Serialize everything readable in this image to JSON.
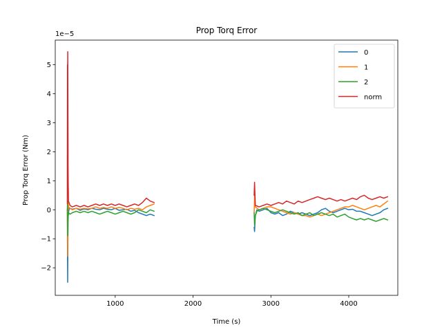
{
  "chart_data": {
    "type": "line",
    "title": "Prop Torq Error",
    "xlabel": "Time (s)",
    "ylabel": "Prop Torq Error (Nm)",
    "y_offset_label": "1e−5",
    "xlim": [
      230,
      4630
    ],
    "ylim": [
      -2.95,
      5.85
    ],
    "y_scale_note": "values are in units of 1e-5 Nm",
    "xticks": [
      1000,
      2000,
      3000,
      4000
    ],
    "xtick_labels": [
      "1000",
      "2000",
      "3000",
      "4000"
    ],
    "yticks": [
      -2,
      -1,
      0,
      1,
      2,
      3,
      4,
      5
    ],
    "ytick_labels": [
      "−2",
      "−1",
      "0",
      "1",
      "2",
      "3",
      "4",
      "5"
    ],
    "grid": false,
    "legend_position": "upper right",
    "series": [
      {
        "name": "0",
        "color": "#1f77b4",
        "segments": [
          [
            [
              385,
              0
            ],
            [
              388,
              -1.6
            ],
            [
              390,
              -2.5
            ],
            [
              392,
              -1.2
            ],
            [
              395,
              -0.3
            ],
            [
              400,
              -0.1
            ],
            [
              410,
              0.05
            ],
            [
              450,
              0.02
            ],
            [
              500,
              0.05
            ],
            [
              550,
              -0.02
            ],
            [
              600,
              0.03
            ],
            [
              650,
              0.0
            ],
            [
              700,
              0.05
            ],
            [
              750,
              0.02
            ],
            [
              800,
              0.0
            ],
            [
              850,
              0.05
            ],
            [
              900,
              0.02
            ],
            [
              950,
              0.0
            ],
            [
              1000,
              0.05
            ],
            [
              1050,
              -0.02
            ],
            [
              1100,
              0.0
            ],
            [
              1150,
              0.02
            ],
            [
              1200,
              -0.05
            ],
            [
              1250,
              -0.02
            ],
            [
              1300,
              -0.1
            ],
            [
              1350,
              -0.15
            ],
            [
              1400,
              -0.2
            ],
            [
              1450,
              -0.15
            ],
            [
              1500,
              -0.2
            ]
          ],
          [
            [
              2785,
              -0.6
            ],
            [
              2790,
              -0.75
            ],
            [
              2800,
              -0.2
            ],
            [
              2820,
              0.0
            ],
            [
              2850,
              -0.05
            ],
            [
              2900,
              0.0
            ],
            [
              2950,
              0.05
            ],
            [
              3000,
              -0.1
            ],
            [
              3050,
              -0.15
            ],
            [
              3100,
              -0.1
            ],
            [
              3150,
              -0.2
            ],
            [
              3200,
              -0.15
            ],
            [
              3250,
              -0.05
            ],
            [
              3300,
              -0.1
            ],
            [
              3350,
              -0.15
            ],
            [
              3400,
              -0.1
            ],
            [
              3450,
              -0.15
            ],
            [
              3500,
              -0.2
            ],
            [
              3550,
              -0.15
            ],
            [
              3600,
              -0.1
            ],
            [
              3650,
              0.0
            ],
            [
              3700,
              0.05
            ],
            [
              3750,
              -0.05
            ],
            [
              3800,
              -0.1
            ],
            [
              3850,
              -0.05
            ],
            [
              3900,
              0.0
            ],
            [
              3950,
              0.05
            ],
            [
              4000,
              0.0
            ],
            [
              4050,
              0.02
            ],
            [
              4100,
              -0.05
            ],
            [
              4150,
              -0.05
            ],
            [
              4200,
              -0.1
            ],
            [
              4250,
              -0.15
            ],
            [
              4300,
              -0.2
            ],
            [
              4350,
              -0.15
            ],
            [
              4400,
              -0.1
            ],
            [
              4450,
              0.0
            ],
            [
              4500,
              0.05
            ]
          ]
        ]
      },
      {
        "name": "1",
        "color": "#ff7f0e",
        "segments": [
          [
            [
              385,
              0
            ],
            [
              388,
              -0.8
            ],
            [
              390,
              -1.6
            ],
            [
              393,
              -0.5
            ],
            [
              396,
              0.3
            ],
            [
              400,
              0.1
            ],
            [
              420,
              0.05
            ],
            [
              450,
              0.0
            ],
            [
              500,
              0.05
            ],
            [
              550,
              0.02
            ],
            [
              600,
              0.05
            ],
            [
              650,
              0.03
            ],
            [
              700,
              0.05
            ],
            [
              750,
              0.1
            ],
            [
              800,
              0.05
            ],
            [
              850,
              0.08
            ],
            [
              900,
              0.05
            ],
            [
              950,
              0.1
            ],
            [
              1000,
              0.05
            ],
            [
              1050,
              0.08
            ],
            [
              1100,
              0.05
            ],
            [
              1150,
              0.0
            ],
            [
              1200,
              0.05
            ],
            [
              1250,
              0.02
            ],
            [
              1300,
              0.05
            ],
            [
              1350,
              0.0
            ],
            [
              1400,
              0.1
            ],
            [
              1450,
              0.15
            ],
            [
              1500,
              0.2
            ]
          ],
          [
            [
              2785,
              -0.1
            ],
            [
              2790,
              0.5
            ],
            [
              2800,
              0.1
            ],
            [
              2850,
              0.0
            ],
            [
              2900,
              0.05
            ],
            [
              2950,
              0.1
            ],
            [
              3000,
              0.1
            ],
            [
              3050,
              0.05
            ],
            [
              3100,
              0.0
            ],
            [
              3150,
              -0.05
            ],
            [
              3200,
              -0.1
            ],
            [
              3250,
              -0.15
            ],
            [
              3300,
              -0.1
            ],
            [
              3350,
              -0.15
            ],
            [
              3400,
              -0.2
            ],
            [
              3450,
              -0.2
            ],
            [
              3500,
              -0.25
            ],
            [
              3550,
              -0.2
            ],
            [
              3600,
              -0.15
            ],
            [
              3650,
              -0.2
            ],
            [
              3700,
              -0.15
            ],
            [
              3750,
              -0.1
            ],
            [
              3800,
              -0.05
            ],
            [
              3850,
              0.0
            ],
            [
              3900,
              0.05
            ],
            [
              3950,
              0.1
            ],
            [
              4000,
              0.1
            ],
            [
              4050,
              0.15
            ],
            [
              4100,
              0.1
            ],
            [
              4150,
              0.05
            ],
            [
              4200,
              0.0
            ],
            [
              4250,
              0.05
            ],
            [
              4300,
              0.1
            ],
            [
              4350,
              0.15
            ],
            [
              4400,
              0.1
            ],
            [
              4450,
              0.2
            ],
            [
              4500,
              0.3
            ]
          ]
        ]
      },
      {
        "name": "2",
        "color": "#2ca02c",
        "segments": [
          [
            [
              385,
              0
            ],
            [
              388,
              0.3
            ],
            [
              390,
              -0.9
            ],
            [
              393,
              -0.4
            ],
            [
              397,
              -0.2
            ],
            [
              400,
              -0.1
            ],
            [
              420,
              -0.15
            ],
            [
              450,
              -0.1
            ],
            [
              500,
              -0.05
            ],
            [
              550,
              -0.1
            ],
            [
              600,
              -0.05
            ],
            [
              650,
              -0.1
            ],
            [
              700,
              -0.05
            ],
            [
              750,
              -0.1
            ],
            [
              800,
              -0.15
            ],
            [
              850,
              -0.1
            ],
            [
              900,
              -0.05
            ],
            [
              950,
              -0.1
            ],
            [
              1000,
              -0.15
            ],
            [
              1050,
              -0.1
            ],
            [
              1100,
              -0.05
            ],
            [
              1150,
              -0.1
            ],
            [
              1200,
              -0.15
            ],
            [
              1250,
              -0.1
            ],
            [
              1300,
              0.0
            ],
            [
              1350,
              -0.05
            ],
            [
              1400,
              -0.1
            ],
            [
              1450,
              0.0
            ],
            [
              1500,
              -0.05
            ]
          ],
          [
            [
              2785,
              -0.1
            ],
            [
              2790,
              -0.55
            ],
            [
              2800,
              -0.2
            ],
            [
              2820,
              -0.05
            ],
            [
              2850,
              0.0
            ],
            [
              2900,
              0.05
            ],
            [
              2950,
              0.0
            ],
            [
              3000,
              -0.05
            ],
            [
              3050,
              -0.1
            ],
            [
              3100,
              -0.05
            ],
            [
              3150,
              0.0
            ],
            [
              3200,
              -0.05
            ],
            [
              3250,
              -0.1
            ],
            [
              3300,
              -0.15
            ],
            [
              3350,
              -0.1
            ],
            [
              3400,
              -0.2
            ],
            [
              3450,
              -0.15
            ],
            [
              3500,
              -0.1
            ],
            [
              3550,
              -0.2
            ],
            [
              3600,
              -0.15
            ],
            [
              3650,
              -0.1
            ],
            [
              3700,
              -0.15
            ],
            [
              3750,
              -0.2
            ],
            [
              3800,
              -0.15
            ],
            [
              3850,
              -0.25
            ],
            [
              3900,
              -0.2
            ],
            [
              3950,
              -0.15
            ],
            [
              4000,
              -0.25
            ],
            [
              4050,
              -0.3
            ],
            [
              4100,
              -0.35
            ],
            [
              4150,
              -0.3
            ],
            [
              4200,
              -0.35
            ],
            [
              4250,
              -0.3
            ],
            [
              4300,
              -0.35
            ],
            [
              4350,
              -0.4
            ],
            [
              4400,
              -0.35
            ],
            [
              4450,
              -0.3
            ],
            [
              4500,
              -0.35
            ]
          ]
        ]
      },
      {
        "name": "norm",
        "color": "#d62728",
        "segments": [
          [
            [
              385,
              0.2
            ],
            [
              387,
              5.0
            ],
            [
              389,
              2.5
            ],
            [
              391,
              5.45
            ],
            [
              393,
              3.0
            ],
            [
              395,
              1.5
            ],
            [
              397,
              0.9
            ],
            [
              400,
              0.3
            ],
            [
              420,
              0.15
            ],
            [
              450,
              0.1
            ],
            [
              500,
              0.15
            ],
            [
              550,
              0.1
            ],
            [
              600,
              0.15
            ],
            [
              650,
              0.1
            ],
            [
              700,
              0.15
            ],
            [
              750,
              0.2
            ],
            [
              800,
              0.15
            ],
            [
              850,
              0.2
            ],
            [
              900,
              0.15
            ],
            [
              950,
              0.2
            ],
            [
              1000,
              0.15
            ],
            [
              1050,
              0.2
            ],
            [
              1100,
              0.15
            ],
            [
              1150,
              0.1
            ],
            [
              1200,
              0.15
            ],
            [
              1250,
              0.2
            ],
            [
              1300,
              0.15
            ],
            [
              1350,
              0.25
            ],
            [
              1400,
              0.4
            ],
            [
              1450,
              0.3
            ],
            [
              1500,
              0.25
            ]
          ],
          [
            [
              2785,
              0.5
            ],
            [
              2790,
              0.95
            ],
            [
              2795,
              0.6
            ],
            [
              2800,
              0.15
            ],
            [
              2850,
              0.1
            ],
            [
              2900,
              0.15
            ],
            [
              2950,
              0.2
            ],
            [
              3000,
              0.15
            ],
            [
              3050,
              0.2
            ],
            [
              3100,
              0.25
            ],
            [
              3150,
              0.2
            ],
            [
              3200,
              0.3
            ],
            [
              3250,
              0.25
            ],
            [
              3300,
              0.2
            ],
            [
              3350,
              0.3
            ],
            [
              3400,
              0.25
            ],
            [
              3450,
              0.3
            ],
            [
              3500,
              0.35
            ],
            [
              3550,
              0.4
            ],
            [
              3600,
              0.45
            ],
            [
              3650,
              0.4
            ],
            [
              3700,
              0.35
            ],
            [
              3750,
              0.4
            ],
            [
              3800,
              0.35
            ],
            [
              3850,
              0.3
            ],
            [
              3900,
              0.35
            ],
            [
              3950,
              0.3
            ],
            [
              4000,
              0.35
            ],
            [
              4050,
              0.4
            ],
            [
              4100,
              0.35
            ],
            [
              4150,
              0.45
            ],
            [
              4200,
              0.5
            ],
            [
              4250,
              0.4
            ],
            [
              4300,
              0.35
            ],
            [
              4350,
              0.4
            ],
            [
              4400,
              0.45
            ],
            [
              4450,
              0.4
            ],
            [
              4500,
              0.45
            ]
          ]
        ]
      }
    ]
  }
}
